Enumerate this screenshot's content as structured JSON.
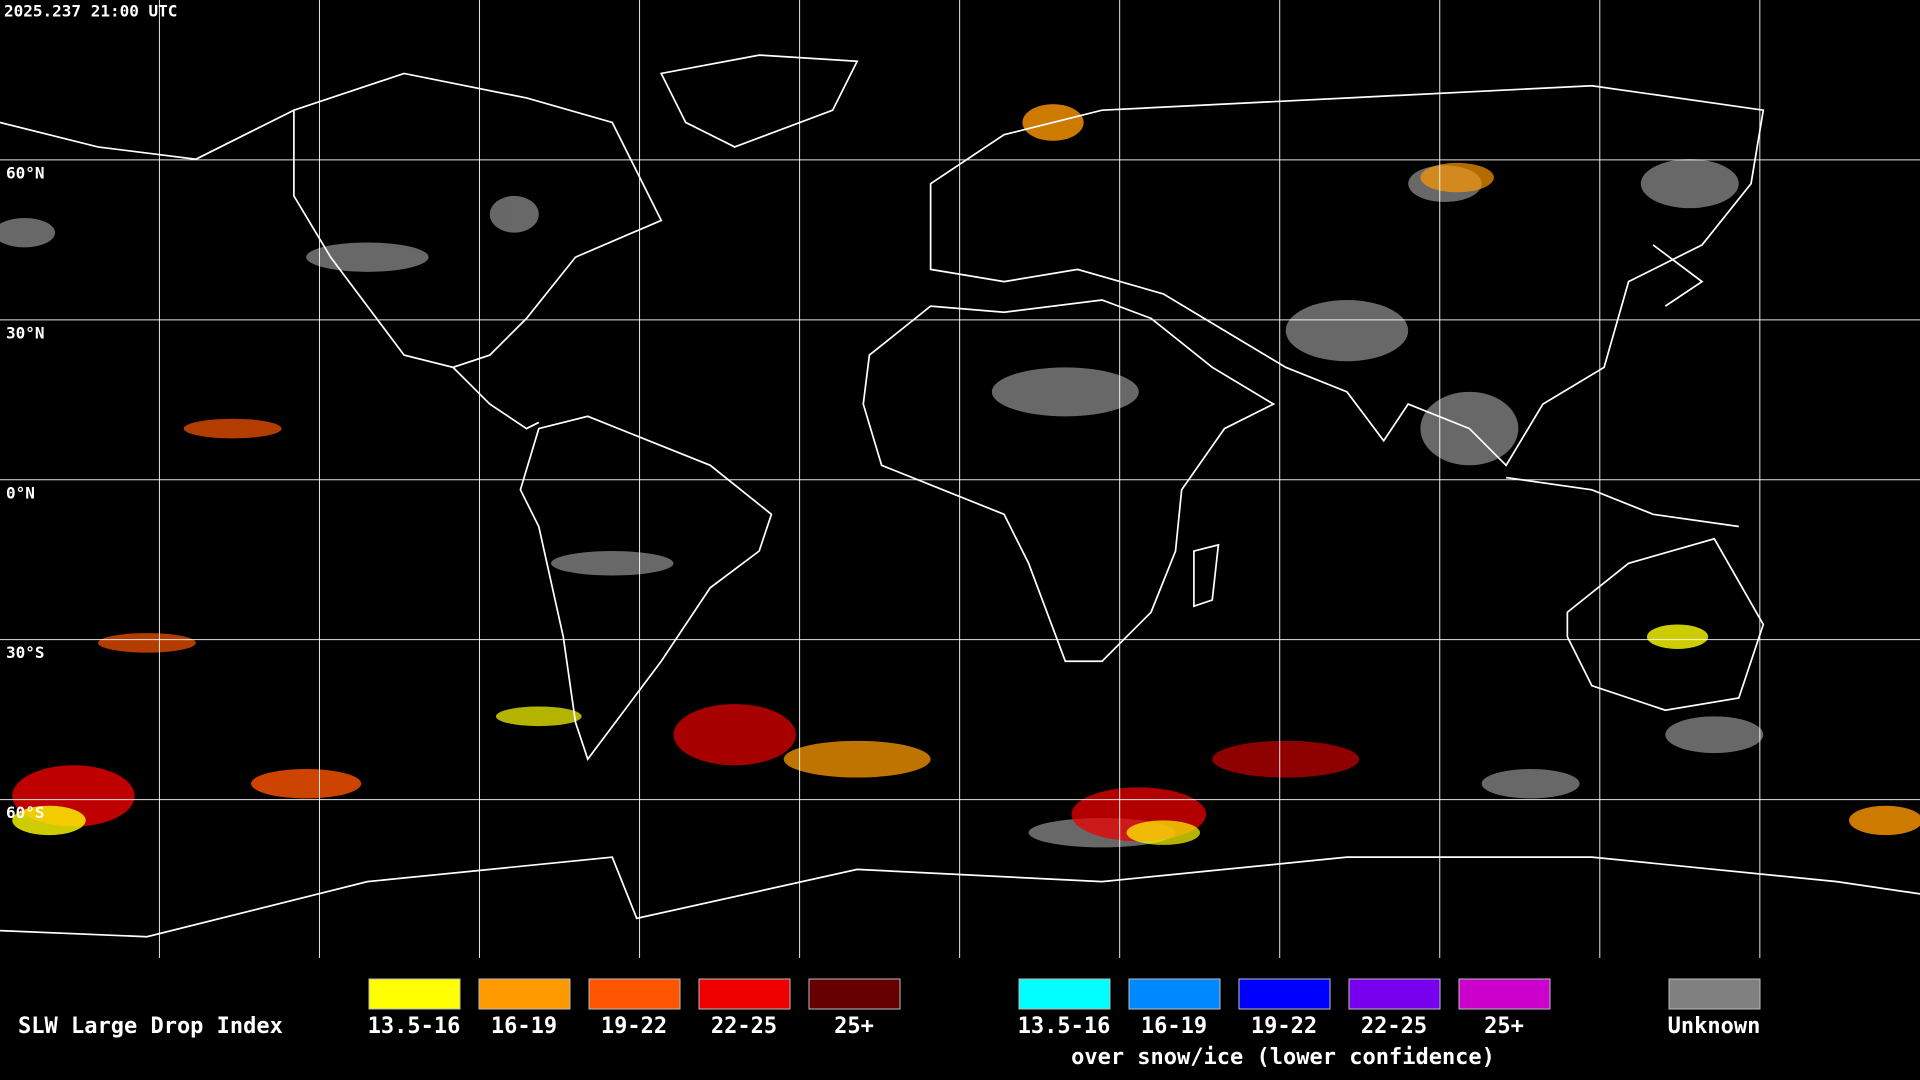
{
  "header": {
    "timestamp": "2025.237 21:00 UTC"
  },
  "map": {
    "lat_labels": [
      "60°N",
      "30°N",
      "0°N",
      "30°S",
      "60°S"
    ]
  },
  "legend": {
    "title": "SLW Large Drop Index",
    "liquid": [
      {
        "label": "13.5-16",
        "color": "#ffff00"
      },
      {
        "label": "16-19",
        "color": "#ff9900"
      },
      {
        "label": "19-22",
        "color": "#ff5500"
      },
      {
        "label": "22-25",
        "color": "#ee0000"
      },
      {
        "label": "25+",
        "color": "#660000"
      }
    ],
    "snow_ice": [
      {
        "label": "13.5-16",
        "color": "#00ffff"
      },
      {
        "label": "16-19",
        "color": "#0088ff"
      },
      {
        "label": "19-22",
        "color": "#0000ff"
      },
      {
        "label": "22-25",
        "color": "#7700ee"
      },
      {
        "label": "25+",
        "color": "#cc00cc"
      }
    ],
    "snow_ice_label": "over snow/ice (lower confidence)",
    "unknown": {
      "label": "Unknown",
      "color": "#808080"
    }
  }
}
